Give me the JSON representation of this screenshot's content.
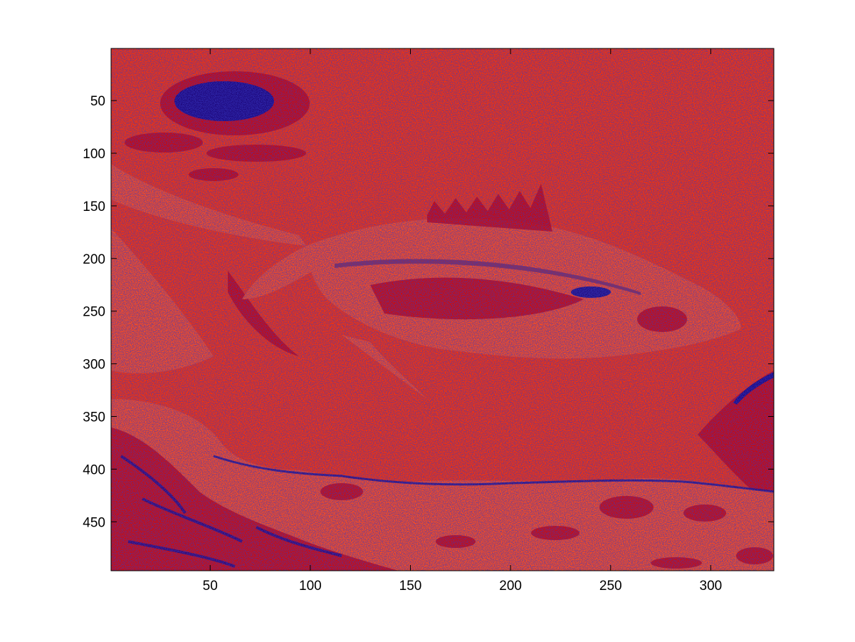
{
  "chart_data": {
    "type": "heatmap",
    "title": "",
    "xlabel": "",
    "ylabel": "",
    "xlim": [
      0.5,
      331.5
    ],
    "ylim": [
      0.5,
      496.5
    ],
    "y_direction": "reversed",
    "grid": false,
    "legend": "none",
    "x_ticks": [
      50,
      100,
      150,
      200,
      250,
      300
    ],
    "x_tick_labels": [
      "50",
      "100",
      "150",
      "200",
      "250",
      "300"
    ],
    "y_ticks": [
      50,
      100,
      150,
      200,
      250,
      300,
      350,
      400,
      450
    ],
    "y_tick_labels": [
      "50",
      "100",
      "150",
      "200",
      "250",
      "300",
      "350",
      "400",
      "450"
    ],
    "image_width": 331,
    "image_height": 496,
    "colormap": {
      "background": "#ff3300",
      "light": "#ff4d1a",
      "dark": "#cc0000",
      "low": "#0a0a8c"
    },
    "depicted_content": "fish"
  }
}
